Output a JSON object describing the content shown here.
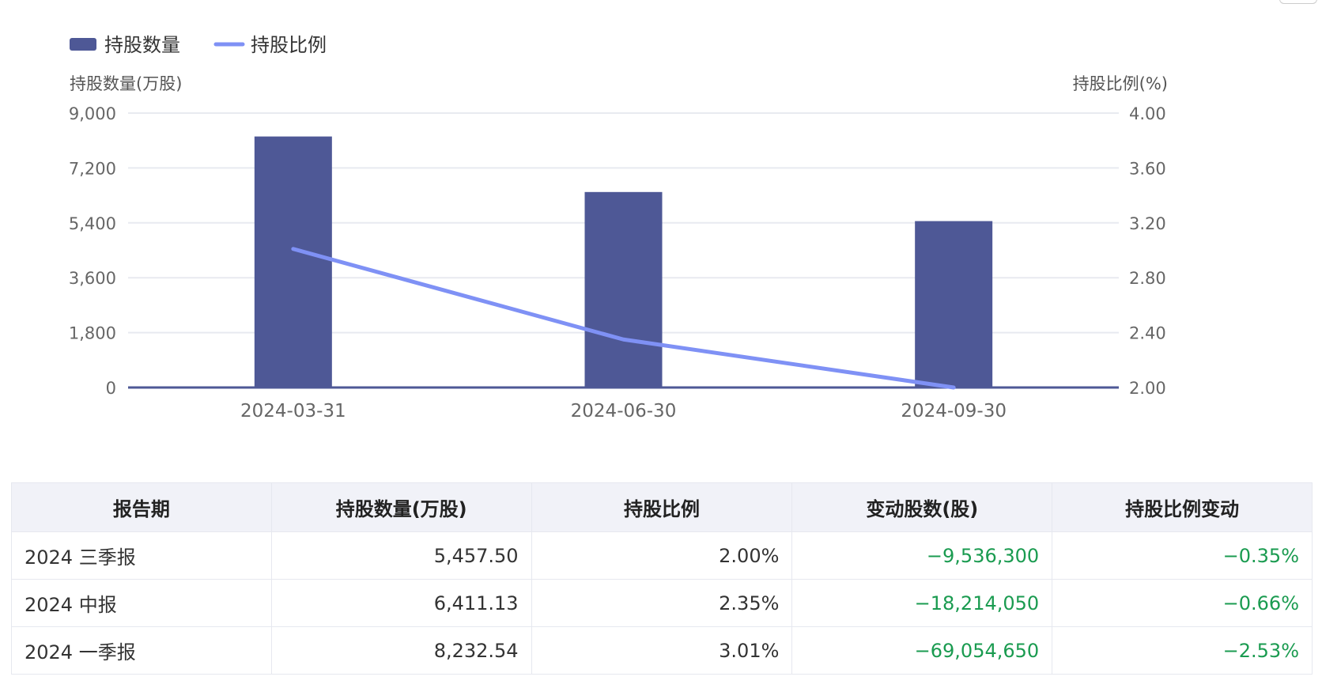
{
  "legend": {
    "bar_label": "持股数量",
    "line_label": "持股比例"
  },
  "colors": {
    "bar": "#4e5896",
    "line": "#7f91f5",
    "negative": "#1a9b50",
    "grid": "#e8eaf0"
  },
  "chart_data": {
    "type": "bar",
    "categories": [
      "2024-03-31",
      "2024-06-30",
      "2024-09-30"
    ],
    "series": [
      {
        "name": "持股数量",
        "type": "bar",
        "axis": "left",
        "values": [
          8232.54,
          6411.13,
          5457.5
        ]
      },
      {
        "name": "持股比例",
        "type": "line",
        "axis": "right",
        "values": [
          3.01,
          2.35,
          2.0
        ]
      }
    ],
    "ylabel_left": "持股数量(万股)",
    "ylabel_right": "持股比例(%)",
    "ylim_left": [
      0,
      9000
    ],
    "ylim_right": [
      2.0,
      4.0
    ],
    "yticks_left": [
      "0",
      "1,800",
      "3,600",
      "5,400",
      "7,200",
      "9,000"
    ],
    "yticks_right": [
      "2.00",
      "2.40",
      "2.80",
      "3.20",
      "3.60",
      "4.00"
    ],
    "grid": true,
    "legend_position": "top-left"
  },
  "table": {
    "headers": [
      "报告期",
      "持股数量(万股)",
      "持股比例",
      "变动股数(股)",
      "持股比例变动"
    ],
    "rows": [
      [
        "2024 三季报",
        "5,457.50",
        "2.00%",
        "−9,536,300",
        "−0.35%"
      ],
      [
        "2024 中报",
        "6,411.13",
        "2.35%",
        "−18,214,050",
        "−0.66%"
      ],
      [
        "2024 一季报",
        "8,232.54",
        "3.01%",
        "−69,054,650",
        "−2.53%"
      ]
    ]
  }
}
